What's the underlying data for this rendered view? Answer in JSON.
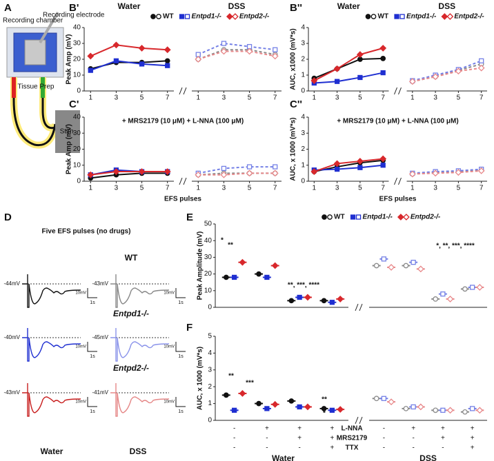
{
  "diagram": {
    "label": "A",
    "electrode": "Recording electrode",
    "chamber": "Recording chamber",
    "tissue": "Tissue Prep",
    "stim": "Stim."
  },
  "traces_panel": {
    "label": "D",
    "title": "Five EFS pulses (no drugs)",
    "columns": [
      "Water",
      "DSS"
    ],
    "scale_y": "10mV",
    "scale_x": "1s",
    "rows": [
      {
        "genotype": "WT",
        "water_mv": "-44mV",
        "dss_mv": "-43mV"
      },
      {
        "genotype": "Entpd1-/-",
        "water_mv": "-40mV",
        "dss_mv": "-45mV"
      },
      {
        "genotype": "Entpd2-/-",
        "water_mv": "-43mV",
        "dss_mv": "-41mV"
      }
    ]
  },
  "chart_data": [
    {
      "type": "line",
      "label": "B'",
      "y_label": "Peak Amp (mV)",
      "ylim": [
        0,
        40
      ],
      "yticks": [
        0,
        10,
        20,
        30,
        40
      ],
      "x": [
        1,
        3,
        5,
        7
      ],
      "xlim": [
        0.5,
        7.5
      ],
      "xticks": [
        1,
        3,
        5,
        7
      ],
      "series": [
        {
          "name": "WT",
          "color": "#111111",
          "light_color": "#8a8a8a"
        },
        {
          "name": "Entpd1-/-",
          "color": "#1f2fd1",
          "light_color": "#7480e6"
        },
        {
          "name": "Entpd2-/-",
          "color": "#d8282c",
          "light_color": "#e8888a"
        }
      ],
      "sections": [
        {
          "label": "Water",
          "values": [
            [
              14,
              18,
              18,
              19
            ],
            [
              13,
              19,
              17,
              16
            ],
            [
              22,
              29,
              27,
              26
            ]
          ]
        },
        {
          "label": "DSS",
          "values": [
            [
              20,
              26,
              26,
              23
            ],
            [
              23,
              30,
              28,
              26
            ],
            [
              20,
              25,
              25,
              22
            ]
          ]
        }
      ]
    },
    {
      "type": "line",
      "label": "B''",
      "y_label": "AUC, x1000 (mV*s)",
      "ylim": [
        0,
        4
      ],
      "yticks": [
        0,
        1,
        2,
        3,
        4
      ],
      "x": [
        1,
        3,
        5,
        7
      ],
      "xlim": [
        0.5,
        7.5
      ],
      "xticks": [
        1,
        3,
        5,
        7
      ],
      "series": [
        {
          "name": "WT",
          "color": "#111111",
          "light_color": "#8a8a8a"
        },
        {
          "name": "Entpd1-/-",
          "color": "#1f2fd1",
          "light_color": "#7480e6"
        },
        {
          "name": "Entpd2-/-",
          "color": "#d8282c",
          "light_color": "#e8888a"
        }
      ],
      "sections": [
        {
          "label": "Water",
          "values": [
            [
              0.8,
              1.4,
              2.0,
              2.05
            ],
            [
              0.5,
              0.6,
              0.85,
              1.15
            ],
            [
              0.65,
              1.4,
              2.3,
              2.7
            ]
          ]
        },
        {
          "label": "DSS",
          "values": [
            [
              0.6,
              0.9,
              1.3,
              1.7
            ],
            [
              0.65,
              1.0,
              1.35,
              1.9
            ],
            [
              0.6,
              0.9,
              1.25,
              1.45
            ]
          ]
        }
      ]
    },
    {
      "type": "line",
      "label": "C'",
      "subtitle": "+ MRS2179 (10 μM) + L-NNA (100 μM)",
      "y_label": "Peak Amp (mV)",
      "x_label": "EFS pulses",
      "ylim": [
        0,
        40
      ],
      "yticks": [
        0,
        10,
        20,
        30,
        40
      ],
      "x": [
        1,
        3,
        5,
        7
      ],
      "xlim": [
        0.5,
        7.5
      ],
      "xticks": [
        1,
        3,
        5,
        7
      ],
      "series": [
        {
          "color": "#111111",
          "light_color": "#8a8a8a"
        },
        {
          "color": "#1f2fd1",
          "light_color": "#7480e6"
        },
        {
          "color": "#d8282c",
          "light_color": "#e8888a"
        }
      ],
      "sections": [
        {
          "values": [
            [
              2,
              4,
              5,
              5
            ],
            [
              4,
              7,
              6,
              6
            ],
            [
              4,
              6,
              6,
              6
            ]
          ]
        },
        {
          "values": [
            [
              4,
              5,
              5,
              5
            ],
            [
              5,
              8,
              9,
              9
            ],
            [
              4,
              4,
              5,
              5
            ]
          ]
        }
      ]
    },
    {
      "type": "line",
      "label": "C''",
      "subtitle": "+ MRS2179 (10 μM) + L-NNA (100 μM)",
      "y_label": "AUC, x 1000 (mV*s)",
      "x_label": "EFS pulses",
      "ylim": [
        0,
        4
      ],
      "yticks": [
        0,
        1,
        2,
        3,
        4
      ],
      "x": [
        1,
        3,
        5,
        7
      ],
      "xlim": [
        0.5,
        7.5
      ],
      "xticks": [
        1,
        3,
        5,
        7
      ],
      "series": [
        {
          "color": "#111111",
          "light_color": "#8a8a8a"
        },
        {
          "color": "#1f2fd1",
          "light_color": "#7480e6"
        },
        {
          "color": "#d8282c",
          "light_color": "#e8888a"
        }
      ],
      "sections": [
        {
          "values": [
            [
              0.6,
              0.9,
              1.15,
              1.3
            ],
            [
              0.7,
              0.75,
              0.85,
              1.0
            ],
            [
              0.6,
              1.1,
              1.25,
              1.4
            ]
          ]
        },
        {
          "values": [
            [
              0.45,
              0.55,
              0.6,
              0.7
            ],
            [
              0.5,
              0.6,
              0.65,
              0.75
            ],
            [
              0.45,
              0.5,
              0.55,
              0.65
            ]
          ]
        }
      ]
    },
    {
      "type": "dot",
      "label": "E",
      "y_label": "Peak Amplitude (mV)",
      "ylim": [
        0,
        50
      ],
      "yticks": [
        0,
        10,
        20,
        30,
        40,
        50
      ],
      "series": [
        {
          "name": "WT",
          "color": "#111111",
          "light_color": "#8a8a8a"
        },
        {
          "name": "Entpd1-/-",
          "color": "#1f2fd1",
          "light_color": "#7480e6"
        },
        {
          "name": "Entpd2-/-",
          "color": "#d8282c",
          "light_color": "#e8888a"
        }
      ],
      "sections": [
        {
          "means": [
            [
              18,
              20,
              4,
              4
            ],
            [
              18,
              18,
              6,
              3
            ],
            [
              27,
              25,
              6,
              5
            ]
          ]
        },
        {
          "means": [
            [
              25,
              25,
              5,
              11
            ],
            [
              29,
              27,
              8,
              12
            ],
            [
              24,
              23,
              5,
              12
            ]
          ]
        }
      ],
      "annotations": [
        "*",
        "**",
        "**, ***, ****",
        "*, **, ***, ****"
      ]
    },
    {
      "type": "dot",
      "label": "F",
      "y_label": "AUC, x 1000 (mV*s)",
      "ylim": [
        0,
        5
      ],
      "yticks": [
        0,
        1,
        2,
        3,
        4,
        5
      ],
      "series": [
        {
          "color": "#111111",
          "light_color": "#8a8a8a"
        },
        {
          "color": "#1f2fd1",
          "light_color": "#7480e6"
        },
        {
          "color": "#d8282c",
          "light_color": "#e8888a"
        }
      ],
      "sections": [
        {
          "label": "Water",
          "means": [
            [
              1.5,
              1.0,
              1.15,
              0.7
            ],
            [
              0.6,
              0.7,
              0.8,
              0.6
            ],
            [
              1.6,
              0.95,
              0.8,
              0.65
            ]
          ]
        },
        {
          "label": "DSS",
          "means": [
            [
              1.3,
              0.7,
              0.6,
              0.5
            ],
            [
              1.3,
              0.8,
              0.6,
              0.7
            ],
            [
              1.1,
              0.8,
              0.6,
              0.6
            ]
          ]
        }
      ],
      "treatments": [
        {
          "label": "L-NNA",
          "signs": [
            "-",
            "+",
            "+",
            "+"
          ]
        },
        {
          "label": "MRS2179",
          "signs": [
            "-",
            "-",
            "+",
            "+"
          ]
        },
        {
          "label": "TTX",
          "signs": [
            "-",
            "-",
            "-",
            "+"
          ]
        }
      ],
      "annotations": [
        "**",
        "***",
        "**",
        "*"
      ]
    }
  ]
}
